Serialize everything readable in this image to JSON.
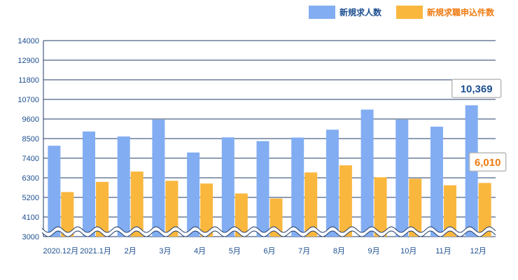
{
  "chart_data": {
    "type": "bar",
    "categories": [
      "2020.12月",
      "2021.1月",
      "2月",
      "3月",
      "4月",
      "5月",
      "6月",
      "7月",
      "8月",
      "9月",
      "10月",
      "11月",
      "12月"
    ],
    "series": [
      {
        "name": "新規求人数",
        "color": "#82adf2",
        "values": [
          8100,
          8900,
          8620,
          9560,
          7720,
          8570,
          8360,
          8560,
          9000,
          10130,
          9560,
          9170,
          10369
        ]
      },
      {
        "name": "新規求職申込件数",
        "color": "#f9b73e",
        "values": [
          5500,
          6070,
          6650,
          6130,
          5980,
          5420,
          5140,
          6600,
          7000,
          6330,
          6250,
          5880,
          6010
        ]
      }
    ],
    "y_ticks": [
      3000,
      4100,
      5200,
      6300,
      7400,
      8500,
      9600,
      10700,
      11800,
      12900,
      14000
    ],
    "ylim": [
      3000,
      14000
    ],
    "axis_break": "between 3000 and 4100",
    "grid": true,
    "legend_position": "top-right",
    "callouts": [
      {
        "text": "10,369",
        "series": 0,
        "category": 12,
        "text_color": "#1d4f91"
      },
      {
        "text": "6,010",
        "series": 1,
        "category": 12,
        "text_color": "#f07a10"
      }
    ]
  }
}
